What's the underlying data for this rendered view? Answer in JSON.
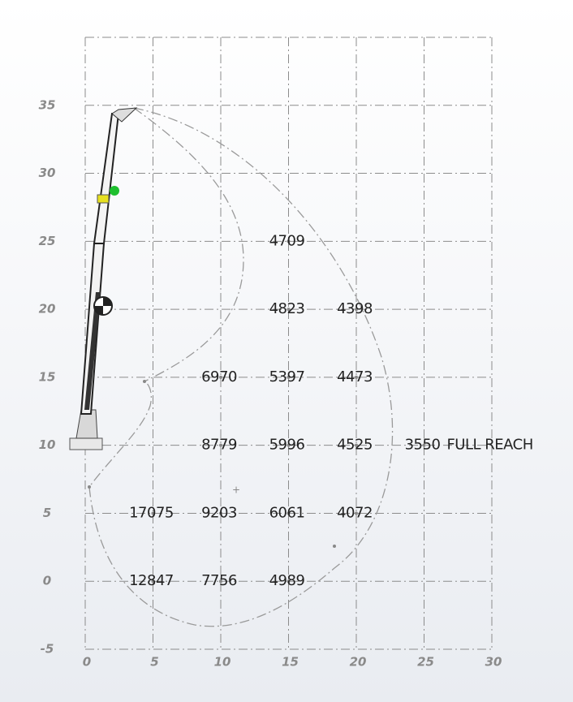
{
  "chart_data": {
    "type": "scatter",
    "x": [
      15,
      15,
      20,
      10,
      15,
      20,
      10,
      15,
      20,
      25,
      5,
      10,
      15,
      20,
      5,
      10,
      15
    ],
    "y": [
      25,
      20,
      20,
      15,
      15,
      15,
      10,
      10,
      10,
      10,
      5,
      5,
      5,
      5,
      0,
      0,
      0
    ],
    "values": [
      4709,
      4823,
      4398,
      6970,
      5397,
      4473,
      8779,
      5996,
      4525,
      3550,
      17075,
      9203,
      6061,
      4072,
      12847,
      7756,
      4989
    ],
    "annotation": "FULL REACH",
    "xlim": [
      0,
      30
    ],
    "ylim": [
      -5,
      40
    ],
    "xticks": [
      0,
      5,
      10,
      15,
      20,
      25,
      30
    ],
    "yticks": [
      -5,
      0,
      5,
      10,
      15,
      20,
      25,
      30,
      35
    ],
    "grid": true,
    "color": "#222222"
  }
}
